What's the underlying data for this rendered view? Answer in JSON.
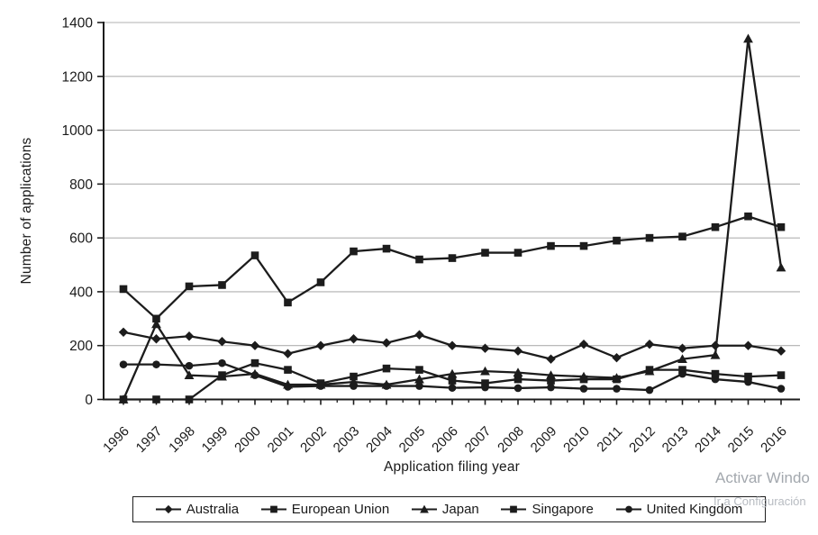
{
  "chart_data": {
    "type": "line",
    "title": "",
    "xlabel": "Application filing year",
    "ylabel": "Number of applications",
    "x": [
      1996,
      1997,
      1998,
      1999,
      2000,
      2001,
      2002,
      2003,
      2004,
      2005,
      2006,
      2007,
      2008,
      2009,
      2010,
      2011,
      2012,
      2013,
      2014,
      2015,
      2016
    ],
    "ylim": [
      0,
      1400
    ],
    "yticks": [
      0,
      200,
      400,
      600,
      800,
      1000,
      1200,
      1400
    ],
    "grid": true,
    "legend_position": "bottom",
    "series": [
      {
        "name": "Australia",
        "marker": "diamond",
        "values": [
          250,
          225,
          235,
          215,
          200,
          170,
          200,
          225,
          210,
          240,
          200,
          190,
          180,
          150,
          205,
          155,
          205,
          190,
          200,
          200,
          180
        ]
      },
      {
        "name": "European Union",
        "marker": "square",
        "values": [
          410,
          300,
          420,
          425,
          535,
          360,
          435,
          550,
          560,
          520,
          525,
          545,
          545,
          570,
          570,
          590,
          600,
          605,
          640,
          680,
          640
        ]
      },
      {
        "name": "Japan",
        "marker": "triangle",
        "values": [
          0,
          280,
          90,
          85,
          95,
          55,
          55,
          65,
          55,
          75,
          95,
          105,
          100,
          90,
          85,
          80,
          105,
          150,
          165,
          1340,
          490
        ]
      },
      {
        "name": "Singapore",
        "marker": "square",
        "values": [
          0,
          0,
          0,
          90,
          135,
          110,
          60,
          85,
          115,
          110,
          70,
          60,
          75,
          70,
          75,
          75,
          110,
          110,
          95,
          85,
          90
        ]
      },
      {
        "name": "United Kingdom",
        "marker": "circle",
        "values": [
          130,
          130,
          125,
          135,
          90,
          47,
          50,
          50,
          50,
          50,
          43,
          45,
          42,
          45,
          40,
          40,
          35,
          95,
          75,
          65,
          40
        ]
      }
    ]
  },
  "watermark": {
    "line1": "Activar Windo",
    "line2": "Ir a Configuración"
  },
  "colors": {
    "line": "#1c1c1c",
    "grid": "#b0b0b0",
    "text": "#1a1a1a",
    "watermark1": "#a3a8ae",
    "watermark2": "#b7bbc1"
  }
}
